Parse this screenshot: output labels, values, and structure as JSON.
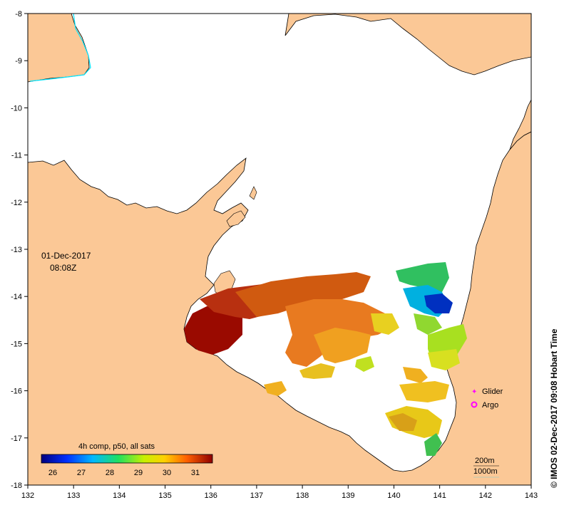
{
  "map": {
    "lon_ticks": [
      "132",
      "133",
      "134",
      "135",
      "136",
      "137",
      "138",
      "139",
      "140",
      "141",
      "142",
      "143"
    ],
    "lat_ticks": [
      "-8",
      "-9",
      "-10",
      "-11",
      "-12",
      "-13",
      "-14",
      "-15",
      "-16",
      "-17",
      "-18"
    ],
    "lon_range": [
      132,
      143
    ],
    "lat_range": [
      -18,
      -8
    ],
    "land_color": "#fbc896",
    "sea_color": "#ffffff"
  },
  "annotation": {
    "date": "01-Dec-2017",
    "time": "08:08Z"
  },
  "colorbar": {
    "title": "4h comp, p50, all sats",
    "ticks": [
      "26",
      "27",
      "28",
      "29",
      "30",
      "31"
    ],
    "range": [
      25.6,
      31.6
    ]
  },
  "legend": {
    "glider": "Glider",
    "argo": "Argo",
    "glider_color": "#ff00ff",
    "argo_color": "#ff00ff"
  },
  "depth_legend": {
    "contour_200": "200m",
    "contour_1000": "1000m"
  },
  "credit": "© IMOS 02-Dec-2017 09:08 Hobart Time"
}
